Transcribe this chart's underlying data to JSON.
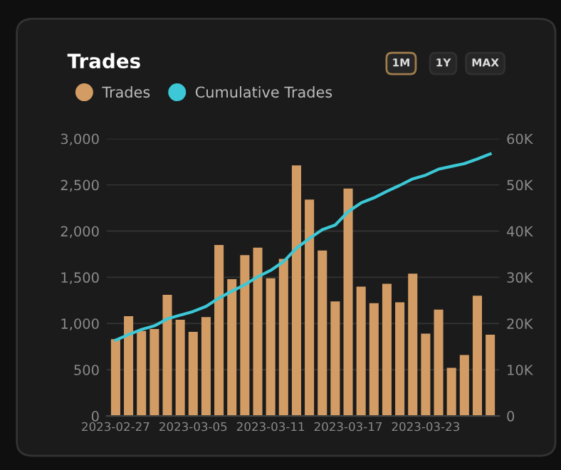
{
  "chart_data": {
    "type": "bar",
    "title": "Trades",
    "annotations": [
      "1M",
      "1Y",
      "MAX"
    ],
    "categories": [
      "2023-02-27",
      null,
      null,
      null,
      null,
      null,
      "2023-03-05",
      null,
      null,
      null,
      null,
      null,
      "2023-03-11",
      null,
      null,
      null,
      null,
      null,
      "2023-03-17",
      null,
      null,
      null,
      null,
      null,
      "2023-03-23",
      null,
      null,
      null,
      null,
      null
    ],
    "series": [
      {
        "name": "Trades",
        "color": "#d29c64",
        "values": [
          830,
          1080,
          920,
          940,
          1310,
          1040,
          910,
          1070,
          1850,
          1480,
          1740,
          1820,
          1490,
          1700,
          2710,
          2340,
          1790,
          1240,
          2460,
          1400,
          1220,
          1430,
          1230,
          1540,
          890,
          1150,
          520,
          660,
          1300,
          880
        ]
      },
      {
        "name": "Cumulative Trades",
        "type": "line",
        "axis": "y2",
        "color": "#3cc8d6",
        "values": [
          16400,
          17600,
          18700,
          19500,
          21000,
          21800,
          22600,
          23700,
          25500,
          27000,
          28400,
          30100,
          31500,
          33400,
          36300,
          38400,
          40300,
          41300,
          44200,
          46100,
          47200,
          48600,
          49900,
          51300,
          52100,
          53400,
          54000,
          54600,
          55600,
          56700
        ]
      }
    ],
    "ylim": [
      0,
      3000
    ],
    "yticks": [
      0,
      {
        "value": 500,
        "label": "500"
      },
      {
        "value": 1000,
        "label": "1,000"
      },
      {
        "value": 1500,
        "label": "1,500"
      },
      {
        "value": 2000,
        "label": "2,000"
      },
      {
        "value": 2500,
        "label": "2,500"
      },
      {
        "value": 3000,
        "label": "3,000"
      }
    ],
    "y2lim": [
      0,
      60000
    ],
    "y2ticks": [
      0,
      {
        "value": 10000,
        "label": "10K"
      },
      {
        "value": 20000,
        "label": "20K"
      },
      {
        "value": 30000,
        "label": "30K"
      },
      {
        "value": 40000,
        "label": "40K"
      },
      {
        "value": 50000,
        "label": "50K"
      },
      {
        "value": 60000,
        "label": "60K"
      }
    ],
    "grid": "y",
    "legend": "top left"
  }
}
